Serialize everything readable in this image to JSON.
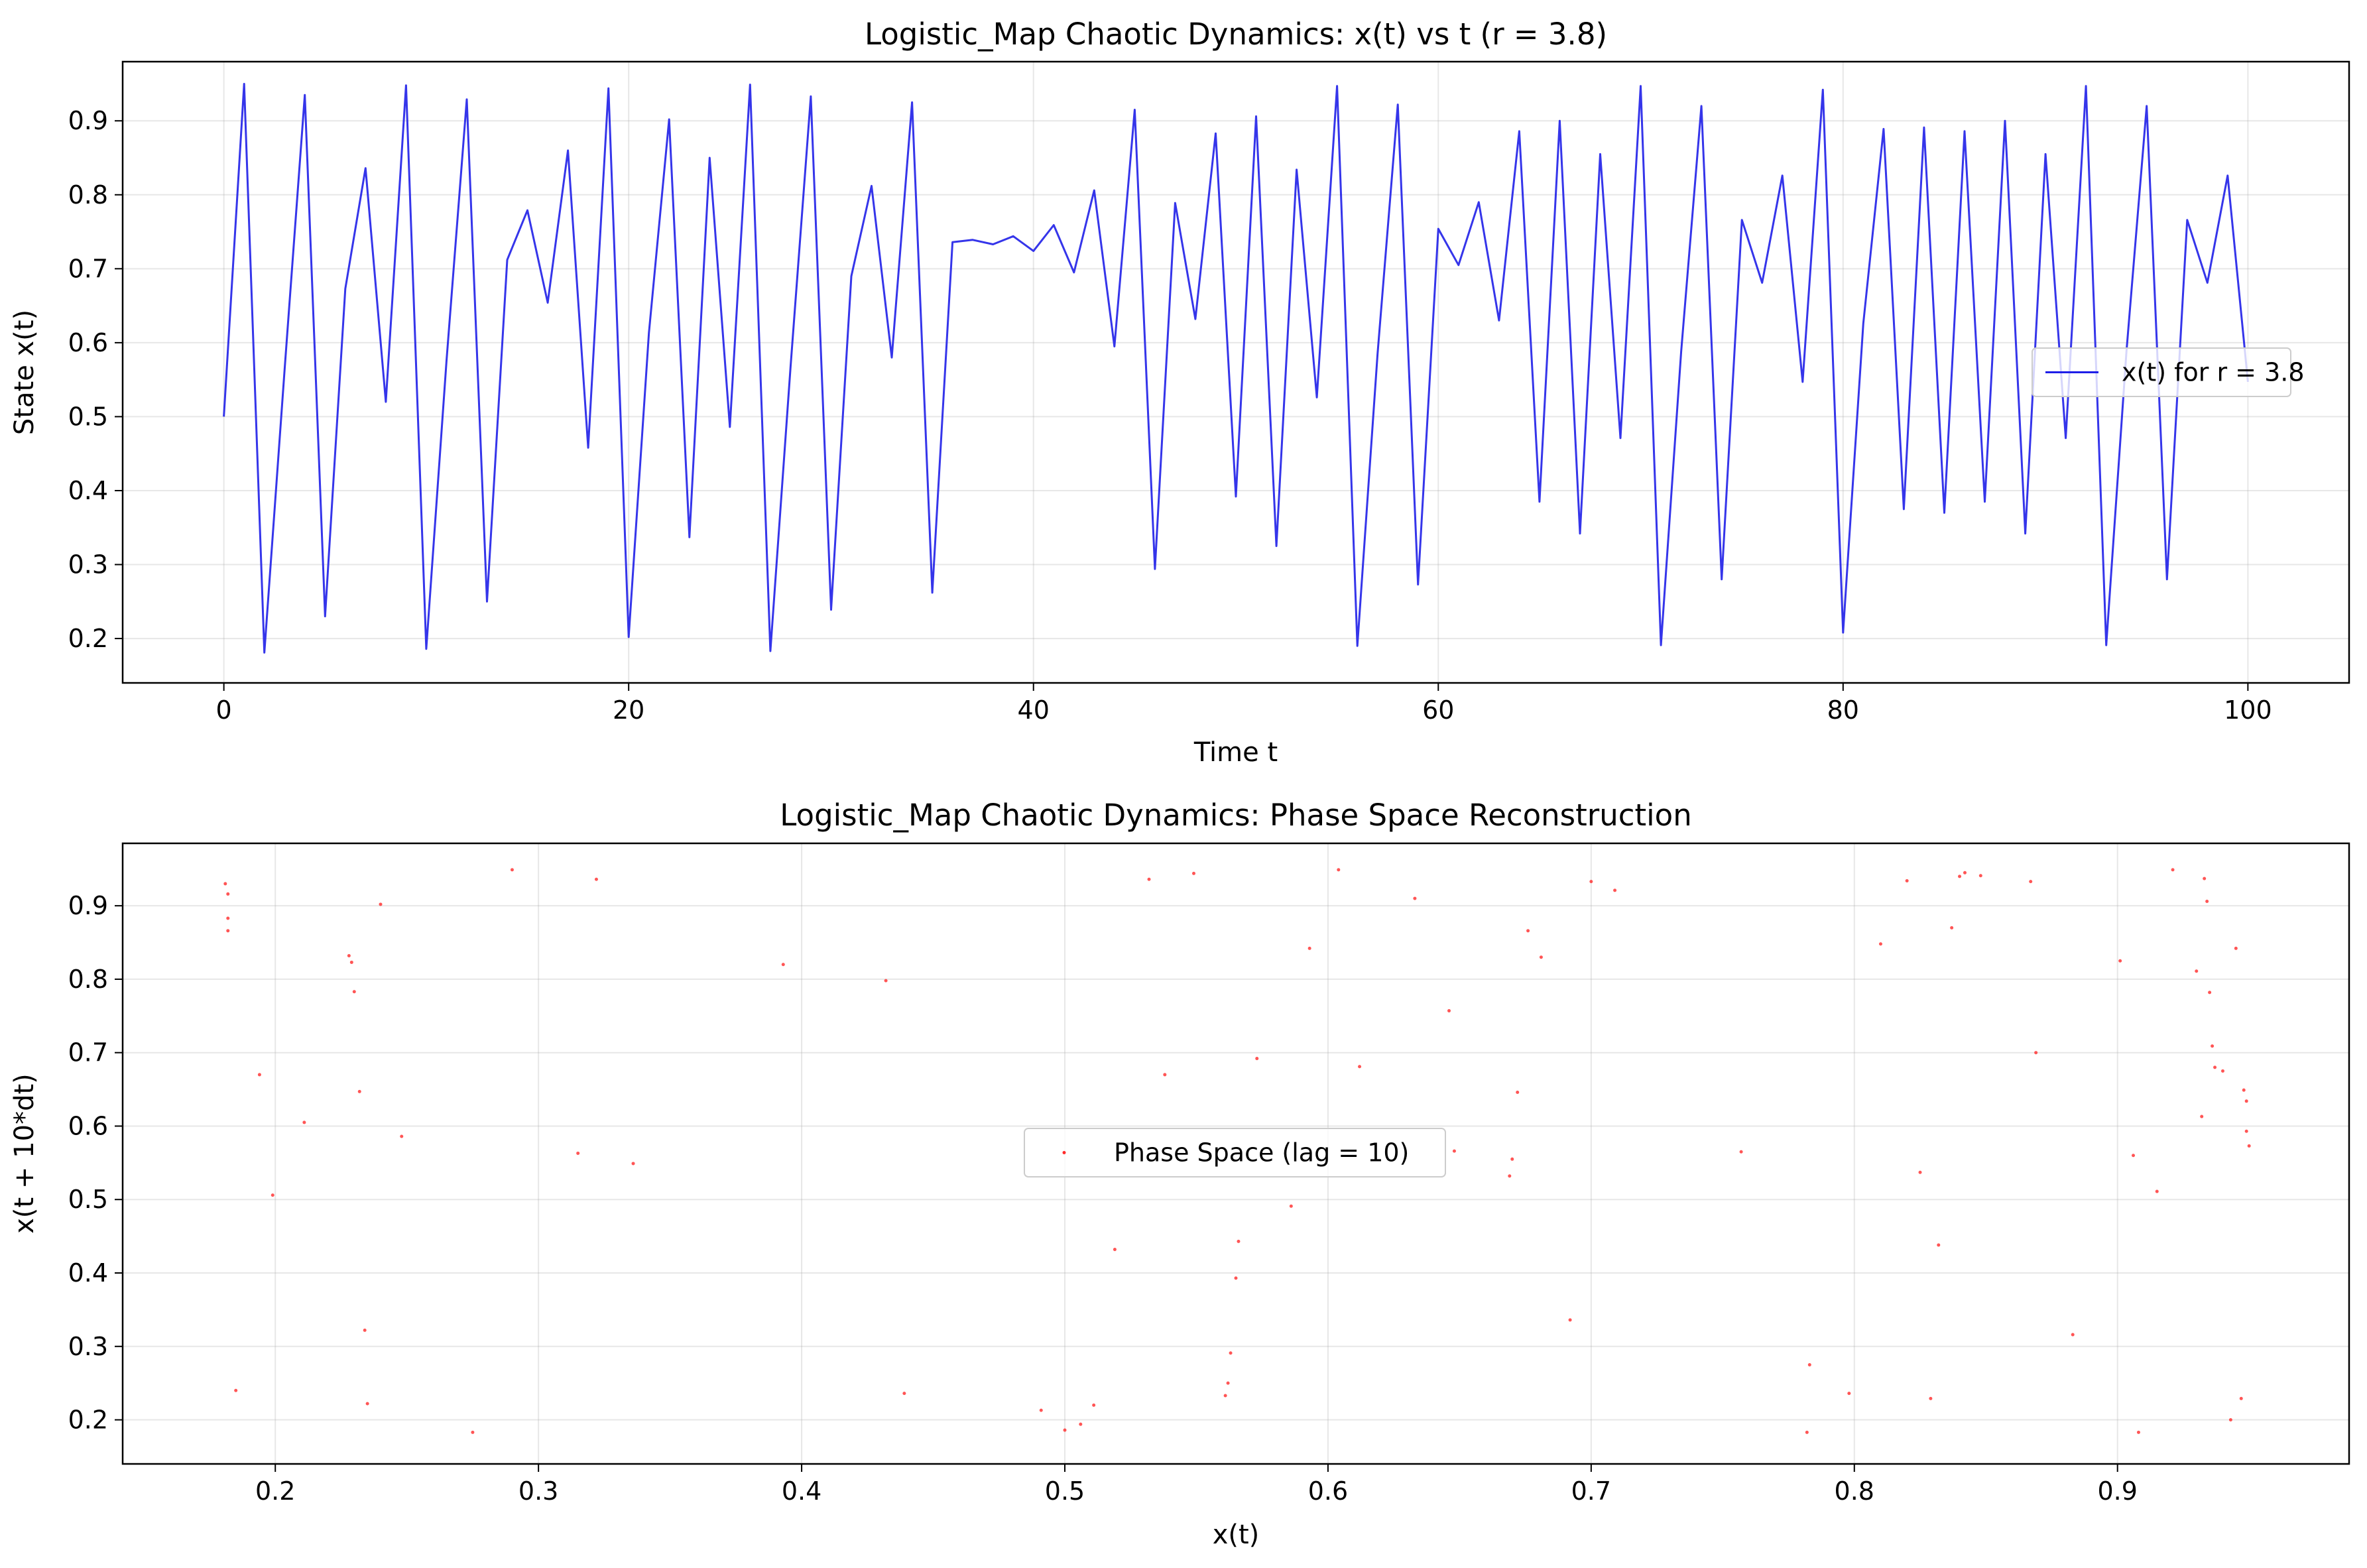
{
  "chart_data": [
    {
      "type": "line",
      "title": "Logistic_Map Chaotic Dynamics: x(t) vs t (r = 3.8)",
      "xlabel": "Time t",
      "ylabel": "State x(t)",
      "xlim": [
        -5,
        105
      ],
      "ylim": [
        0.14,
        0.98
      ],
      "xticks": [
        0,
        20,
        40,
        60,
        80,
        100
      ],
      "yticks": [
        0.2,
        0.3,
        0.4,
        0.5,
        0.6,
        0.7,
        0.8,
        0.9
      ],
      "grid": true,
      "legend_position": "center-right",
      "series": [
        {
          "name": "x(t) for r = 3.8",
          "color": "#1f1fe8",
          "x": [
            0,
            1,
            2,
            3,
            4,
            5,
            6,
            7,
            8,
            9,
            10,
            11,
            12,
            13,
            14,
            15,
            16,
            17,
            18,
            19,
            20,
            21,
            22,
            23,
            24,
            25,
            26,
            27,
            28,
            29,
            30,
            31,
            32,
            33,
            34,
            35,
            36,
            37,
            38,
            39,
            40,
            41,
            42,
            43,
            44,
            45,
            46,
            47,
            48,
            49,
            50,
            51,
            52,
            53,
            54,
            55,
            56,
            57,
            58,
            59,
            60,
            61,
            62,
            63,
            64,
            65,
            66,
            67,
            68,
            69,
            70,
            71,
            72,
            73,
            74,
            75,
            76,
            77,
            78,
            79,
            80,
            81,
            82,
            83,
            84,
            85,
            86,
            87,
            88,
            89,
            90,
            91,
            92,
            93,
            94,
            95,
            96,
            97,
            98,
            99,
            100
          ],
          "values": [
            0.5,
            0.95,
            0.181,
            0.563,
            0.935,
            0.23,
            0.673,
            0.836,
            0.52,
            0.948,
            0.186,
            0.575,
            0.929,
            0.25,
            0.712,
            0.779,
            0.654,
            0.86,
            0.458,
            0.944,
            0.202,
            0.613,
            0.902,
            0.337,
            0.85,
            0.486,
            0.949,
            0.183,
            0.568,
            0.933,
            0.239,
            0.69,
            0.812,
            0.58,
            0.925,
            0.262,
            0.736,
            0.739,
            0.733,
            0.744,
            0.724,
            0.759,
            0.695,
            0.806,
            0.595,
            0.915,
            0.294,
            0.789,
            0.632,
            0.883,
            0.392,
            0.906,
            0.325,
            0.834,
            0.526,
            0.947,
            0.19,
            0.585,
            0.922,
            0.273,
            0.754,
            0.705,
            0.79,
            0.63,
            0.886,
            0.385,
            0.9,
            0.342,
            0.855,
            0.471,
            0.947,
            0.191,
            0.588,
            0.92,
            0.28,
            0.766,
            0.681,
            0.826,
            0.547,
            0.942,
            0.208,
            0.626,
            0.889,
            0.375,
            0.891,
            0.37,
            0.886,
            0.385,
            0.9,
            0.342,
            0.855,
            0.471,
            0.947,
            0.191,
            0.588,
            0.92,
            0.28,
            0.766,
            0.681,
            0.826,
            0.547
          ]
        }
      ]
    },
    {
      "type": "scatter",
      "title": "Logistic_Map Chaotic Dynamics: Phase Space Reconstruction",
      "xlabel": "x(t)",
      "ylabel": "x(t + 10*dt)",
      "xlim": [
        0.142,
        0.988
      ],
      "ylim": [
        0.14,
        0.985
      ],
      "xticks": [
        0.2,
        0.3,
        0.4,
        0.5,
        0.6,
        0.7,
        0.8,
        0.9
      ],
      "yticks": [
        0.2,
        0.3,
        0.4,
        0.5,
        0.6,
        0.7,
        0.8,
        0.9
      ],
      "grid": true,
      "legend_position": "center",
      "series": [
        {
          "name": "Phase Space (lag = 10)",
          "color": "#ff2a2a",
          "x": [
            0.181,
            0.182,
            0.182,
            0.182,
            0.185,
            0.194,
            0.199,
            0.211,
            0.228,
            0.229,
            0.23,
            0.232,
            0.234,
            0.235,
            0.24,
            0.248,
            0.275,
            0.29,
            0.315,
            0.322,
            0.336,
            0.393,
            0.432,
            0.439,
            0.491,
            0.5,
            0.506,
            0.511,
            0.519,
            0.532,
            0.538,
            0.549,
            0.561,
            0.562,
            0.563,
            0.565,
            0.566,
            0.573,
            0.586,
            0.593,
            0.604,
            0.612,
            0.633,
            0.646,
            0.648,
            0.669,
            0.67,
            0.672,
            0.676,
            0.681,
            0.692,
            0.7,
            0.709,
            0.757,
            0.782,
            0.783,
            0.798,
            0.81,
            0.82,
            0.825,
            0.829,
            0.832,
            0.837,
            0.84,
            0.842,
            0.848,
            0.867,
            0.869,
            0.883,
            0.901,
            0.906,
            0.908,
            0.915,
            0.921,
            0.93,
            0.932,
            0.933,
            0.934,
            0.935,
            0.936,
            0.937,
            0.94,
            0.943,
            0.945,
            0.947,
            0.948,
            0.949,
            0.949,
            0.95
          ],
          "values": [
            0.93,
            0.916,
            0.883,
            0.866,
            0.24,
            0.67,
            0.506,
            0.605,
            0.832,
            0.823,
            0.783,
            0.647,
            0.322,
            0.222,
            0.902,
            0.586,
            0.183,
            0.949,
            0.563,
            0.936,
            0.549,
            0.82,
            0.798,
            0.236,
            0.213,
            0.186,
            0.194,
            0.22,
            0.432,
            0.936,
            0.67,
            0.944,
            0.233,
            0.25,
            0.291,
            0.393,
            0.443,
            0.692,
            0.491,
            0.842,
            0.949,
            0.681,
            0.91,
            0.757,
            0.566,
            0.532,
            0.555,
            0.646,
            0.866,
            0.83,
            0.336,
            0.933,
            0.921,
            0.565,
            0.183,
            0.275,
            0.236,
            0.848,
            0.934,
            0.537,
            0.229,
            0.438,
            0.87,
            0.94,
            0.945,
            0.941,
            0.933,
            0.7,
            0.316,
            0.825,
            0.56,
            0.183,
            0.511,
            0.949,
            0.811,
            0.613,
            0.937,
            0.906,
            0.782,
            0.709,
            0.68,
            0.675,
            0.2,
            0.842,
            0.229,
            0.649,
            0.593,
            0.634,
            0.573
          ]
        }
      ]
    }
  ]
}
